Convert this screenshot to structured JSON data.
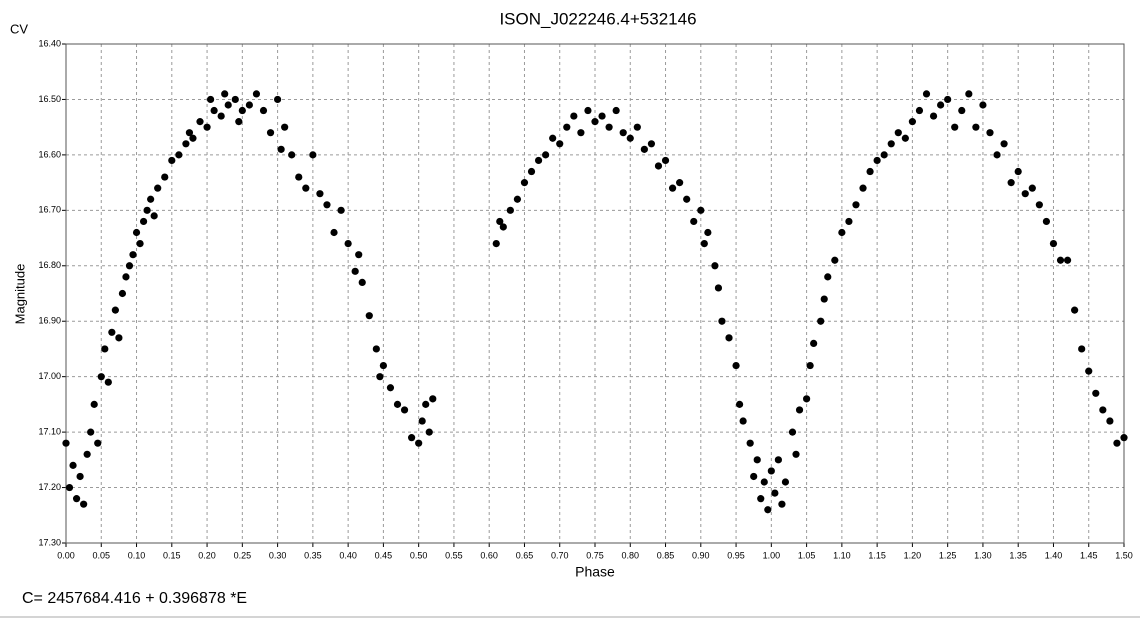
{
  "chart_data": {
    "type": "scatter",
    "title": "ISON_J022246.4+532146",
    "y_corner_label": "CV",
    "xlabel": "Phase",
    "ylabel": "Magnitude",
    "footnote": "C= 2457684.416 + 0.396878 *E",
    "xlim": [
      0,
      1.5
    ],
    "ylim": [
      16.4,
      17.3
    ],
    "invert_y": true,
    "grid": true,
    "xticks": [
      {
        "value": 0,
        "label": "0.00"
      },
      {
        "value": 0.05,
        "label": "0.05"
      },
      {
        "value": 0.1,
        "label": "0.10"
      },
      {
        "value": 0.15,
        "label": "0.15"
      },
      {
        "value": 0.2,
        "label": "0.20"
      },
      {
        "value": 0.25,
        "label": "0.25"
      },
      {
        "value": 0.3,
        "label": "0.30"
      },
      {
        "value": 0.35,
        "label": "0.35"
      },
      {
        "value": 0.4,
        "label": "0.40"
      },
      {
        "value": 0.45,
        "label": "0.45"
      },
      {
        "value": 0.5,
        "label": "0.50"
      },
      {
        "value": 0.55,
        "label": "0.55"
      },
      {
        "value": 0.6,
        "label": "0.60"
      },
      {
        "value": 0.65,
        "label": "0.65"
      },
      {
        "value": 0.7,
        "label": "0.70"
      },
      {
        "value": 0.75,
        "label": "0.75"
      },
      {
        "value": 0.8,
        "label": "0.80"
      },
      {
        "value": 0.85,
        "label": "0.85"
      },
      {
        "value": 0.9,
        "label": "0.90"
      },
      {
        "value": 0.95,
        "label": "0.95"
      },
      {
        "value": 1,
        "label": "1.00"
      },
      {
        "value": 1.05,
        "label": "1.05"
      },
      {
        "value": 1.1,
        "label": "1.10"
      },
      {
        "value": 1.15,
        "label": "1.15"
      },
      {
        "value": 1.2,
        "label": "1.20"
      },
      {
        "value": 1.25,
        "label": "1.25"
      },
      {
        "value": 1.3,
        "label": "1.30"
      },
      {
        "value": 1.35,
        "label": "1.35"
      },
      {
        "value": 1.4,
        "label": "1.40"
      },
      {
        "value": 1.45,
        "label": "1.45"
      },
      {
        "value": 1.5,
        "label": "1.50"
      }
    ],
    "yticks": [
      {
        "value": 16.4,
        "label": "16.40"
      },
      {
        "value": 16.5,
        "label": "16.50"
      },
      {
        "value": 16.6,
        "label": "16.60"
      },
      {
        "value": 16.7,
        "label": "16.70"
      },
      {
        "value": 16.8,
        "label": "16.80"
      },
      {
        "value": 16.9,
        "label": "16.90"
      },
      {
        "value": 17,
        "label": "17.00"
      },
      {
        "value": 17.1,
        "label": "17.10"
      },
      {
        "value": 17.2,
        "label": "17.20"
      },
      {
        "value": 17.3,
        "label": "17.30"
      }
    ],
    "series": [
      {
        "color": "#000000",
        "x": [
          0.0,
          0.005,
          0.01,
          0.015,
          0.02,
          0.025,
          0.03,
          0.035,
          0.04,
          0.045,
          0.05,
          0.055,
          0.06,
          0.065,
          0.07,
          0.075,
          0.08,
          0.085,
          0.09,
          0.095,
          0.1,
          0.105,
          0.11,
          0.115,
          0.12,
          0.125,
          0.13,
          0.14,
          0.15,
          0.16,
          0.17,
          0.175,
          0.18,
          0.19,
          0.2,
          0.205,
          0.21,
          0.22,
          0.225,
          0.23,
          0.24,
          0.245,
          0.25,
          0.26,
          0.27,
          0.28,
          0.29,
          0.3,
          0.305,
          0.31,
          0.32,
          0.33,
          0.34,
          0.35,
          0.36,
          0.37,
          0.38,
          0.39,
          0.4,
          0.41,
          0.415,
          0.42,
          0.43,
          0.44,
          0.445,
          0.45,
          0.46,
          0.47,
          0.48,
          0.49,
          0.5,
          0.505,
          0.51,
          0.515,
          0.52,
          0.61,
          0.615,
          0.62,
          0.63,
          0.64,
          0.65,
          0.66,
          0.67,
          0.68,
          0.69,
          0.7,
          0.71,
          0.72,
          0.73,
          0.74,
          0.75,
          0.76,
          0.77,
          0.78,
          0.79,
          0.8,
          0.81,
          0.82,
          0.83,
          0.84,
          0.85,
          0.86,
          0.87,
          0.88,
          0.89,
          0.9,
          0.905,
          0.91,
          0.92,
          0.925,
          0.93,
          0.94,
          0.95,
          0.955,
          0.96,
          0.97,
          0.975,
          0.98,
          0.985,
          0.99,
          0.995,
          1.0,
          1.005,
          1.01,
          1.015,
          1.02,
          1.03,
          1.035,
          1.04,
          1.05,
          1.055,
          1.06,
          1.07,
          1.075,
          1.08,
          1.09,
          1.1,
          1.11,
          1.12,
          1.13,
          1.14,
          1.15,
          1.16,
          1.17,
          1.18,
          1.19,
          1.2,
          1.21,
          1.22,
          1.23,
          1.24,
          1.25,
          1.26,
          1.27,
          1.28,
          1.29,
          1.3,
          1.31,
          1.32,
          1.33,
          1.34,
          1.35,
          1.36,
          1.37,
          1.38,
          1.39,
          1.4,
          1.41,
          1.42,
          1.43,
          1.44,
          1.45,
          1.46,
          1.47,
          1.48,
          1.49,
          1.5
        ],
        "values": [
          17.12,
          17.2,
          17.16,
          17.22,
          17.18,
          17.23,
          17.14,
          17.1,
          17.05,
          17.12,
          17.0,
          16.95,
          17.01,
          16.92,
          16.88,
          16.93,
          16.85,
          16.82,
          16.8,
          16.78,
          16.74,
          16.76,
          16.72,
          16.7,
          16.68,
          16.71,
          16.66,
          16.64,
          16.61,
          16.6,
          16.58,
          16.56,
          16.57,
          16.54,
          16.55,
          16.5,
          16.52,
          16.53,
          16.49,
          16.51,
          16.5,
          16.54,
          16.52,
          16.51,
          16.49,
          16.52,
          16.56,
          16.5,
          16.59,
          16.55,
          16.6,
          16.64,
          16.66,
          16.6,
          16.67,
          16.69,
          16.74,
          16.7,
          16.76,
          16.81,
          16.78,
          16.83,
          16.89,
          16.95,
          17.0,
          16.98,
          17.02,
          17.05,
          17.06,
          17.11,
          17.12,
          17.08,
          17.05,
          17.1,
          17.04,
          16.76,
          16.72,
          16.73,
          16.7,
          16.68,
          16.65,
          16.63,
          16.61,
          16.6,
          16.57,
          16.58,
          16.55,
          16.53,
          16.56,
          16.52,
          16.54,
          16.53,
          16.55,
          16.52,
          16.56,
          16.57,
          16.55,
          16.59,
          16.58,
          16.62,
          16.61,
          16.66,
          16.65,
          16.68,
          16.72,
          16.7,
          16.76,
          16.74,
          16.8,
          16.84,
          16.9,
          16.93,
          16.98,
          17.05,
          17.08,
          17.12,
          17.18,
          17.15,
          17.22,
          17.19,
          17.24,
          17.17,
          17.21,
          17.15,
          17.23,
          17.19,
          17.1,
          17.14,
          17.06,
          17.04,
          16.98,
          16.94,
          16.9,
          16.86,
          16.82,
          16.79,
          16.74,
          16.72,
          16.69,
          16.66,
          16.63,
          16.61,
          16.6,
          16.58,
          16.56,
          16.57,
          16.54,
          16.52,
          16.49,
          16.53,
          16.51,
          16.5,
          16.55,
          16.52,
          16.49,
          16.55,
          16.51,
          16.56,
          16.6,
          16.58,
          16.65,
          16.63,
          16.67,
          16.66,
          16.69,
          16.72,
          16.76,
          16.79,
          16.79,
          16.88,
          16.95,
          16.99,
          17.03,
          17.06,
          17.08,
          17.12,
          17.11
        ]
      }
    ]
  }
}
